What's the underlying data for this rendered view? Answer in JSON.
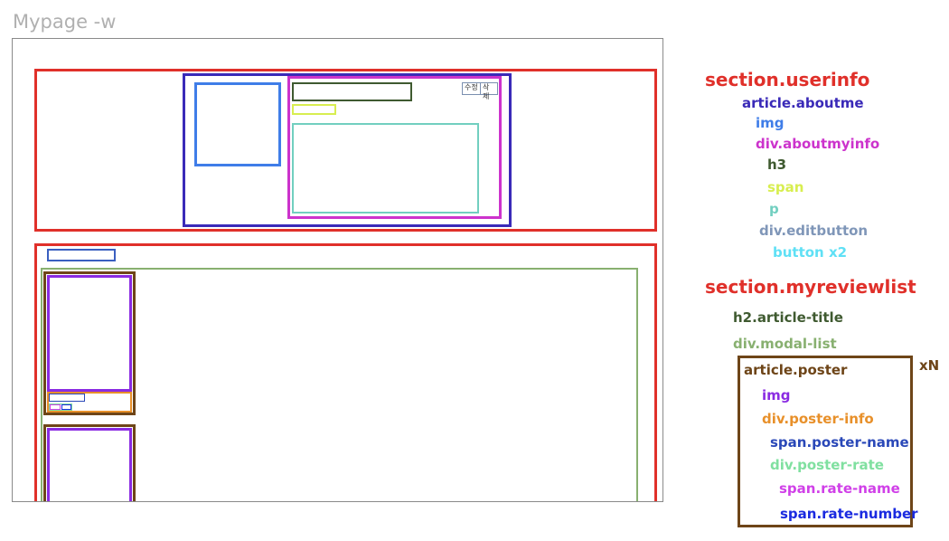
{
  "title": "Mypage -w",
  "buttons": [
    "수정",
    "삭제"
  ],
  "legend": {
    "userinfo": {
      "text": "section.userinfo",
      "color": "#e0302a"
    },
    "aboutme": {
      "text": "article.aboutme",
      "color": "#3a2ab8"
    },
    "img": {
      "text": "img",
      "color": "#3f7de8"
    },
    "aboutmyinfo": {
      "text": "div.aboutmyinfo",
      "color": "#cc33cc"
    },
    "h3": {
      "text": "h3",
      "color": "#3f5a30"
    },
    "span": {
      "text": "span",
      "color": "#d8ee50"
    },
    "p": {
      "text": "p",
      "color": "#72cfc0"
    },
    "editbutton": {
      "text": "div.editbutton",
      "color": "#7f96b8"
    },
    "buttonx2": {
      "text": "button x2",
      "color": "#5fe0f5"
    },
    "myreviewlist": {
      "text": "section.myreviewlist",
      "color": "#e0302a"
    },
    "articletitle": {
      "text": "h2.article-title",
      "color": "#3f5a30"
    },
    "modallist": {
      "text": "div.modal-list",
      "color": "#88b070"
    },
    "poster": {
      "text": "article.poster",
      "color": "#6e4518"
    },
    "xn": {
      "text": "xN",
      "color": "#6e4518"
    },
    "posterimg": {
      "text": "img",
      "color": "#8a2be2"
    },
    "posterinfo": {
      "text": "div.poster-info",
      "color": "#e8902a"
    },
    "postername": {
      "text": "span.poster-name",
      "color": "#2a48b8"
    },
    "posterrate": {
      "text": "div.poster-rate",
      "color": "#80e0a0"
    },
    "ratename": {
      "text": "span.rate-name",
      "color": "#d040e8"
    },
    "ratenumber": {
      "text": "span.rate-number",
      "color": "#1a2ae0"
    }
  }
}
